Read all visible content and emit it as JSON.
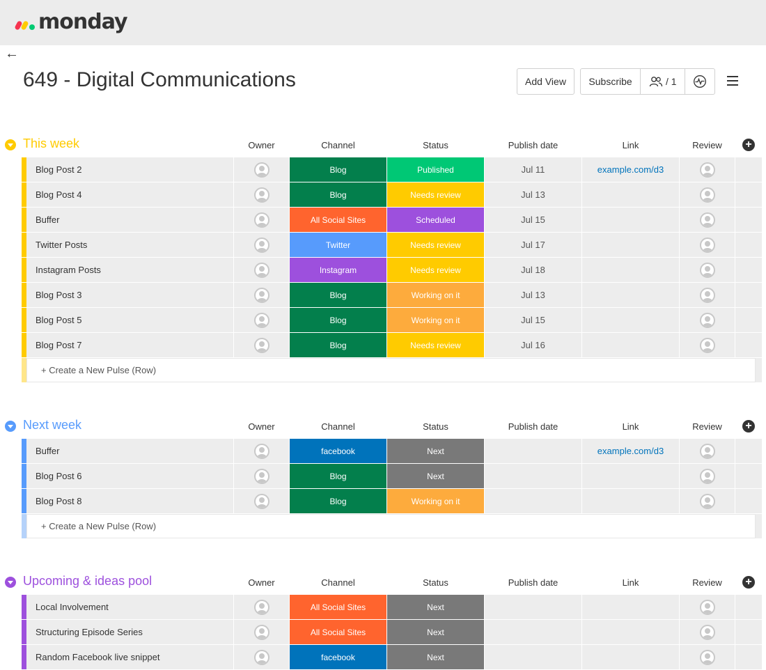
{
  "app": {
    "logo_text": "monday"
  },
  "nav": {
    "back_icon": "←"
  },
  "board": {
    "title": "649 - Digital Communications"
  },
  "toolbar": {
    "add_view_label": "Add View",
    "subscribe_label": "Subscribe",
    "members_count": "/ 1"
  },
  "colors": {
    "blog": "#037f4c",
    "all_social": "#ff642e",
    "twitter": "#579bfc",
    "instagram": "#9d50dd",
    "facebook": "#0073bb",
    "published": "#00c875",
    "needs_review": "#ffcb00",
    "scheduled": "#9d50dd",
    "working": "#fdab3d",
    "next": "#797979"
  },
  "groups": [
    {
      "title": "This week",
      "color": "#ffcb00",
      "new_bar_color": "#ffe68a",
      "columns": [
        "Owner",
        "Channel",
        "Status",
        "Publish date",
        "Link",
        "Review"
      ],
      "rows": [
        {
          "name": "Blog Post 2",
          "channel": "Blog",
          "channel_color": "#037f4c",
          "status": "Published",
          "status_color": "#00c875",
          "date": "Jul 11",
          "link": "example.com/d3"
        },
        {
          "name": "Blog Post 4",
          "channel": "Blog",
          "channel_color": "#037f4c",
          "status": "Needs review",
          "status_color": "#ffcb00",
          "date": "Jul 13",
          "link": ""
        },
        {
          "name": "Buffer",
          "channel": "All Social Sites",
          "channel_color": "#ff642e",
          "status": "Scheduled",
          "status_color": "#9d50dd",
          "date": "Jul 15",
          "link": ""
        },
        {
          "name": "Twitter Posts",
          "channel": "Twitter",
          "channel_color": "#579bfc",
          "status": "Needs review",
          "status_color": "#ffcb00",
          "date": "Jul 17",
          "link": ""
        },
        {
          "name": "Instagram Posts",
          "channel": "Instagram",
          "channel_color": "#9d50dd",
          "status": "Needs review",
          "status_color": "#ffcb00",
          "date": "Jul 18",
          "link": ""
        },
        {
          "name": "Blog Post 3",
          "channel": "Blog",
          "channel_color": "#037f4c",
          "status": "Working on it",
          "status_color": "#fdab3d",
          "date": "Jul 13",
          "link": ""
        },
        {
          "name": "Blog Post 5",
          "channel": "Blog",
          "channel_color": "#037f4c",
          "status": "Working on it",
          "status_color": "#fdab3d",
          "date": "Jul 15",
          "link": ""
        },
        {
          "name": "Blog Post 7",
          "channel": "Blog",
          "channel_color": "#037f4c",
          "status": "Needs review",
          "status_color": "#ffcb00",
          "date": "Jul 16",
          "link": ""
        }
      ],
      "new_row_label": "+ Create a New Pulse (Row)"
    },
    {
      "title": "Next week",
      "color": "#579bfc",
      "new_bar_color": "#b5d2fa",
      "columns": [
        "Owner",
        "Channel",
        "Status",
        "Publish date",
        "Link",
        "Review"
      ],
      "rows": [
        {
          "name": "Buffer",
          "channel": "facebook",
          "channel_color": "#0073bb",
          "status": "Next",
          "status_color": "#797979",
          "date": "",
          "link": "example.com/d3"
        },
        {
          "name": "Blog Post 6",
          "channel": "Blog",
          "channel_color": "#037f4c",
          "status": "Next",
          "status_color": "#797979",
          "date": "",
          "link": ""
        },
        {
          "name": "Blog Post 8",
          "channel": "Blog",
          "channel_color": "#037f4c",
          "status": "Working on it",
          "status_color": "#fdab3d",
          "date": "",
          "link": ""
        }
      ],
      "new_row_label": "+ Create a New Pulse (Row)"
    },
    {
      "title": "Upcoming & ideas pool",
      "color": "#9d50dd",
      "new_bar_color": "#d8b9f1",
      "columns": [
        "Owner",
        "Channel",
        "Status",
        "Publish date",
        "Link",
        "Review"
      ],
      "rows": [
        {
          "name": "Local Involvement",
          "channel": "All Social Sites",
          "channel_color": "#ff642e",
          "status": "Next",
          "status_color": "#797979",
          "date": "",
          "link": ""
        },
        {
          "name": "Structuring Episode Series",
          "channel": "All Social Sites",
          "channel_color": "#ff642e",
          "status": "Next",
          "status_color": "#797979",
          "date": "",
          "link": ""
        },
        {
          "name": "Random Facebook live snippet",
          "channel": "facebook",
          "channel_color": "#0073bb",
          "status": "Next",
          "status_color": "#797979",
          "date": "",
          "link": ""
        }
      ],
      "new_row_label": ""
    }
  ]
}
